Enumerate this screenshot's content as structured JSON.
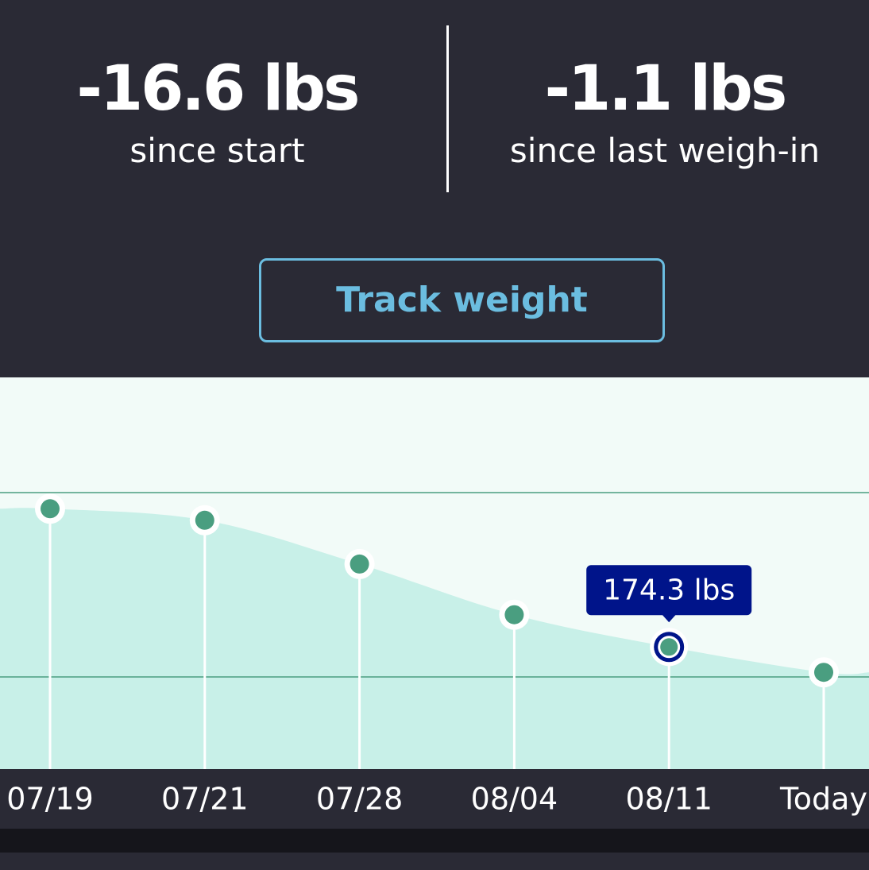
{
  "stats": [
    {
      "value": "-16.6 lbs",
      "label": "since start"
    },
    {
      "value": "-1.1 lbs",
      "label": "since last weigh-in"
    }
  ],
  "button": "Track weight",
  "chart_data": {
    "type": "area",
    "categories": [
      "07/19",
      "07/21",
      "07/28",
      "08/04",
      "08/11",
      "Today"
    ],
    "values": [
      180.3,
      179.8,
      177.9,
      175.7,
      174.3,
      173.2
    ],
    "value_labels": [
      null,
      null,
      null,
      null,
      "174.3 lbs",
      null
    ],
    "ylim": [
      169,
      186
    ],
    "yticks": [
      173,
      181
    ],
    "grid": true,
    "color": "#4a9e80",
    "area_color": "#c8f0e8",
    "highlight_color": "#00148a"
  }
}
